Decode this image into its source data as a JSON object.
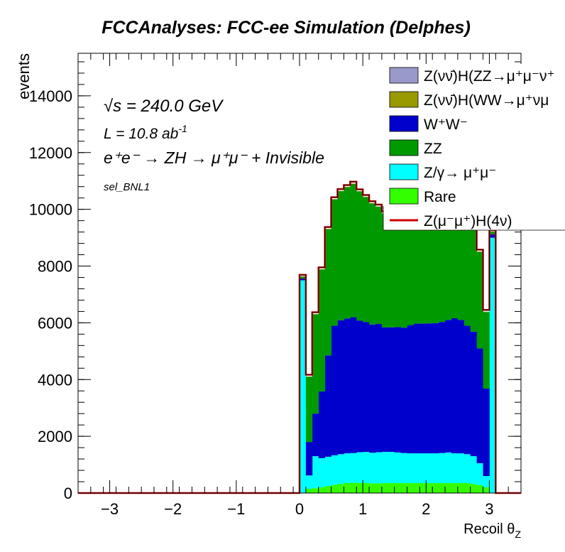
{
  "chart_data": {
    "type": "bar",
    "stacked": true,
    "title": "FCCAnalyses: FCC-ee Simulation (Delphes)",
    "xlabel": "Recoil θ",
    "xlabel_sub": "Z",
    "ylabel": "events",
    "xlim": [
      -3.5,
      3.5
    ],
    "ylim": [
      0,
      15500
    ],
    "x_ticks": [
      -3,
      -2,
      -1,
      0,
      1,
      2,
      3
    ],
    "x_tick_labels": [
      "−3",
      "−2",
      "−1",
      "0",
      "1",
      "2",
      "3"
    ],
    "y_ticks": [
      0,
      2000,
      4000,
      6000,
      8000,
      10000,
      12000,
      14000
    ],
    "y_tick_labels": [
      "0",
      "2000",
      "4000",
      "6000",
      "8000",
      "10000",
      "12000",
      "14000"
    ],
    "grid": false,
    "legend_position": "top-right",
    "annotations": {
      "energy_symbol": "√s",
      "energy_value": " = 240.0 GeV",
      "lumi_base": "L = 10.8 ab",
      "lumi_exp": "-1",
      "process": "e⁺e⁻ → ZH → μ⁺μ⁻ + Invisible",
      "selection": "sel_BNL1"
    },
    "bins": {
      "x_start": 0.0,
      "width": 0.1,
      "count": 31
    },
    "series": [
      {
        "name": "Rare",
        "color": "#33ff00",
        "values": [
          10,
          150,
          170,
          200,
          250,
          290,
          320,
          350,
          360,
          360,
          350,
          340,
          340,
          350,
          350,
          350,
          350,
          350,
          350,
          350,
          350,
          350,
          350,
          350,
          350,
          350,
          350,
          320,
          280,
          200,
          10
        ]
      },
      {
        "name": "Z/γ→ μ⁺μ⁻",
        "color": "#00ffff",
        "values": [
          7490,
          470,
          1130,
          1030,
          1030,
          1040,
          1050,
          1050,
          1050,
          1080,
          1100,
          1080,
          1100,
          1100,
          1100,
          1080,
          1060,
          1050,
          1050,
          1050,
          1050,
          1050,
          1060,
          1080,
          1050,
          1050,
          1020,
          980,
          770,
          400,
          8990
        ]
      },
      {
        "name": "W⁺W⁻",
        "color": "#0000cc",
        "values": [
          60,
          1180,
          1500,
          2350,
          3570,
          4570,
          4720,
          4750,
          4790,
          4640,
          4580,
          4520,
          4520,
          4390,
          4390,
          4420,
          4420,
          4520,
          4570,
          4570,
          4580,
          4590,
          4620,
          4670,
          4760,
          4700,
          4530,
          4390,
          4050,
          3080,
          120
        ]
      },
      {
        "name": "ZZ",
        "color": "#009900",
        "values": [
          70,
          2300,
          3500,
          4300,
          4450,
          4450,
          4550,
          4630,
          4700,
          4550,
          4400,
          4270,
          4130,
          4010,
          3900,
          3800,
          3890,
          3880,
          3880,
          3980,
          4100,
          4200,
          4320,
          4500,
          4600,
          4500,
          4300,
          4060,
          3400,
          2700,
          100
        ]
      },
      {
        "name": "Z(νν̄)H(WW→μ⁺νμ",
        "color": "#999900",
        "values": [
          5,
          5,
          8,
          10,
          10,
          10,
          10,
          10,
          10,
          10,
          10,
          10,
          10,
          10,
          10,
          10,
          10,
          10,
          10,
          10,
          10,
          10,
          10,
          10,
          10,
          10,
          10,
          10,
          10,
          8,
          5
        ]
      },
      {
        "name": "Z(νν̄)H(ZZ→μ⁺μ⁻ν⁺",
        "color": "#9999cc",
        "values": [
          5,
          5,
          5,
          5,
          5,
          5,
          5,
          5,
          5,
          5,
          5,
          5,
          5,
          5,
          5,
          5,
          5,
          5,
          5,
          5,
          5,
          5,
          5,
          5,
          5,
          5,
          5,
          5,
          5,
          5,
          5
        ]
      }
    ],
    "signal": {
      "name": "Z(μ⁻μ⁺)H(4ν)",
      "color": "#cc0000",
      "values": [
        50,
        60,
        60,
        60,
        60,
        60,
        60,
        60,
        60,
        60,
        60,
        60,
        60,
        60,
        60,
        60,
        60,
        60,
        60,
        60,
        60,
        60,
        60,
        60,
        60,
        60,
        60,
        60,
        60,
        60,
        40
      ]
    },
    "legend_entries": [
      {
        "label": "Z(νν̄)H(ZZ→μ⁺μ⁻ν⁺",
        "color": "#9999cc",
        "kind": "box"
      },
      {
        "label": "Z(νν̄)H(WW→μ⁺νμ",
        "color": "#999900",
        "kind": "box"
      },
      {
        "label": "W⁺W⁻",
        "color": "#0000cc",
        "kind": "box"
      },
      {
        "label": "ZZ",
        "color": "#009900",
        "kind": "box"
      },
      {
        "label": "Z/γ→ μ⁺μ⁻",
        "color": "#00ffff",
        "kind": "box"
      },
      {
        "label": "Rare",
        "color": "#33ff00",
        "kind": "box"
      },
      {
        "label": "Z(μ⁻μ⁺)H(4ν)",
        "color": "#cc0000",
        "kind": "line"
      }
    ]
  }
}
